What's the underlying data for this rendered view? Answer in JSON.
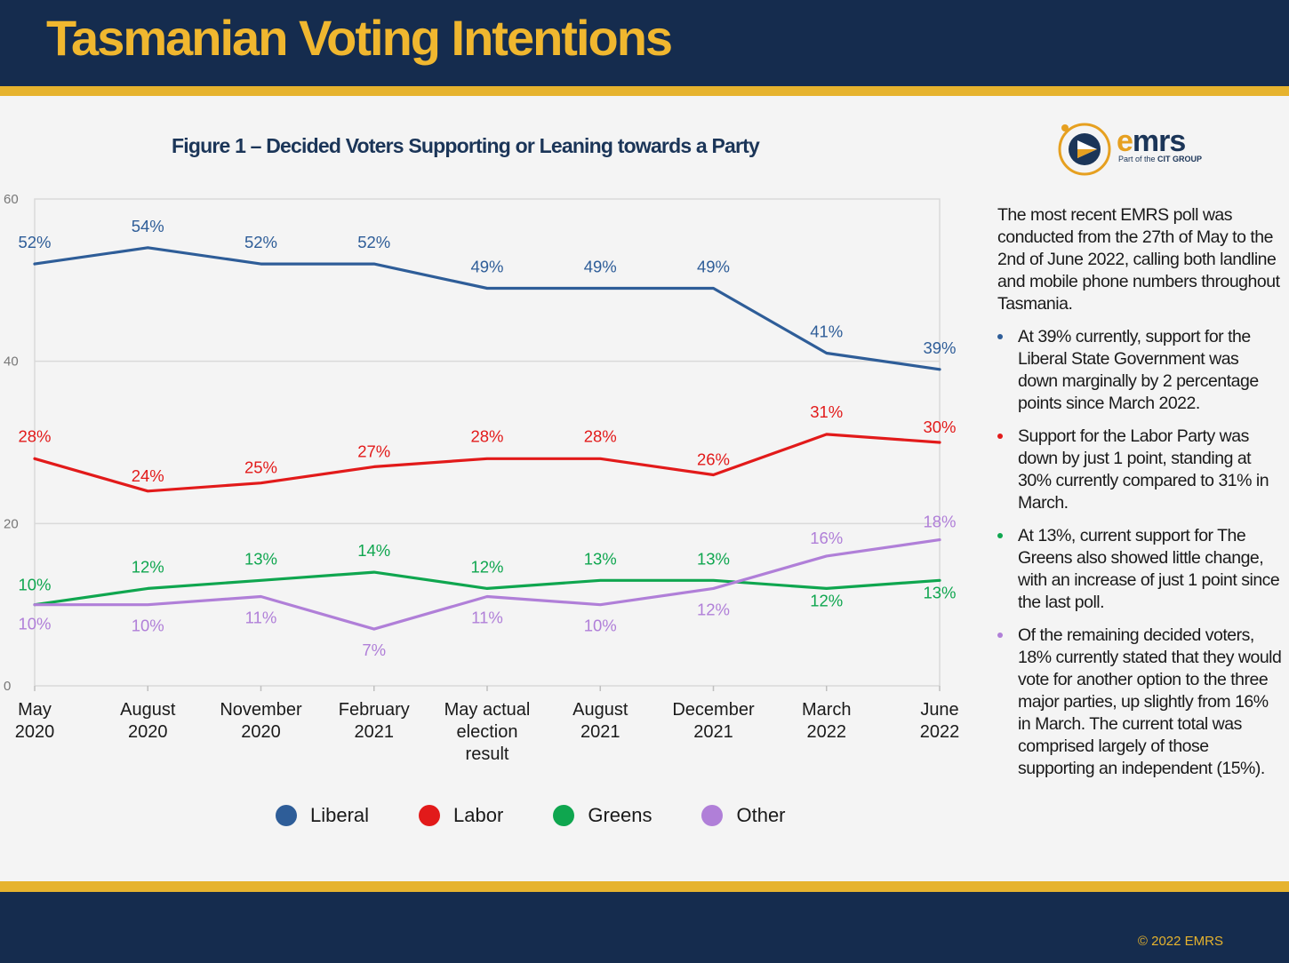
{
  "header": {
    "title": "Tasmanian Voting Intentions"
  },
  "figure_title": "Figure 1 – Decided Voters Supporting or Leaning towards a Party",
  "logo": {
    "brand_e": "e",
    "brand_rest": "mrs",
    "sub_prefix": "Part of the ",
    "sub_group": "CIT GROUP"
  },
  "side_panel": {
    "intro": "The most recent EMRS poll was conducted from the 27th of May to the 2nd of June 2022, calling both landline and mobile phone numbers throughout Tasmania.",
    "bullets": [
      {
        "text": "At 39% currently, support for the Liberal State Government was down marginally by 2 percentage points since March 2022.",
        "color": "#2e5d98"
      },
      {
        "text": "Support for the Labor Party was down by just 1 point, standing at 30% currently compared to 31% in March.",
        "color": "#e21a1a"
      },
      {
        "text": "At 13%, current support for The Greens also showed little change, with an increase of just 1 point since the last poll.",
        "color": "#0fa64f"
      },
      {
        "text": "Of the remaining decided voters, 18% currently stated that they would vote for another option to the three major parties, up slightly from 16% in March. The current total was comprised largely of those supporting an independent (15%).",
        "color": "#b07fd8"
      }
    ]
  },
  "footer": {
    "copyright": "© 2022 EMRS"
  },
  "chart_data": {
    "type": "line",
    "categories": [
      [
        "May",
        "2020"
      ],
      [
        "August",
        "2020"
      ],
      [
        "November",
        "2020"
      ],
      [
        "February",
        "2021"
      ],
      [
        "May actual",
        "election",
        "result"
      ],
      [
        "August",
        "2021"
      ],
      [
        "December",
        "2021"
      ],
      [
        "March",
        "2022"
      ],
      [
        "June",
        "2022"
      ]
    ],
    "ylim": [
      0,
      60
    ],
    "yticks": [
      0,
      20,
      40,
      60
    ],
    "grid": true,
    "legend_position": "bottom",
    "series": [
      {
        "name": "Liberal",
        "color": "#2e5d98",
        "values": [
          52,
          54,
          52,
          52,
          49,
          49,
          49,
          41,
          39
        ]
      },
      {
        "name": "Labor",
        "color": "#e21a1a",
        "values": [
          28,
          24,
          25,
          27,
          28,
          28,
          26,
          31,
          30
        ]
      },
      {
        "name": "Greens",
        "color": "#0fa64f",
        "values": [
          10,
          12,
          13,
          14,
          12,
          13,
          13,
          12,
          13
        ]
      },
      {
        "name": "Other",
        "color": "#b07fd8",
        "values": [
          10,
          10,
          11,
          7,
          11,
          10,
          12,
          16,
          18
        ]
      }
    ]
  }
}
